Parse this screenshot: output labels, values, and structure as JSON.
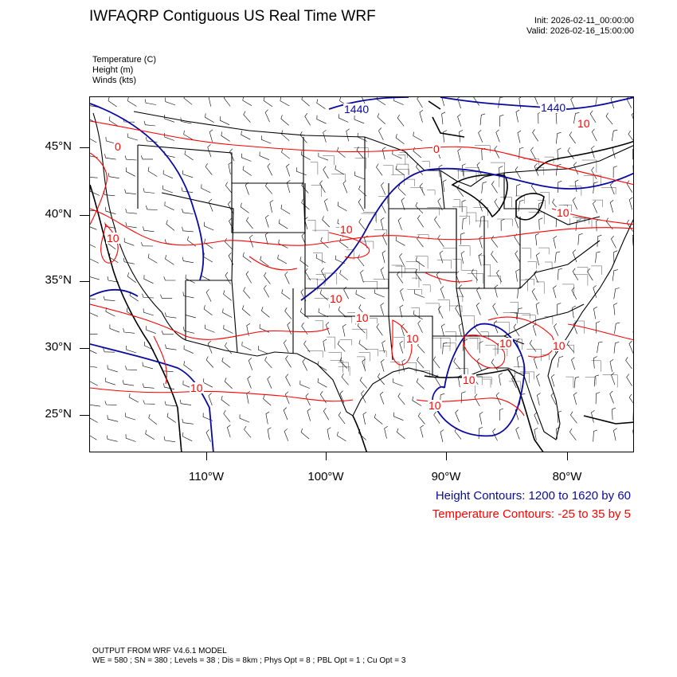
{
  "header": {
    "title": "IWFAQRP Contiguous US Real Time WRF",
    "init": "Init: 2026-02-11_00:00:00",
    "valid": "Valid: 2026-02-16_15:00:00"
  },
  "variables": {
    "temperature": "Temperature   (C)",
    "height": "Height   (m)",
    "winds": "Winds   (kts)"
  },
  "axes": {
    "lat_labels": [
      "45°N",
      "40°N",
      "35°N",
      "30°N",
      "25°N"
    ],
    "lon_labels": [
      "110°W",
      "100°W",
      "90°W",
      "80°W"
    ]
  },
  "legend": {
    "height": "Height Contours: 1200 to 1620 by 60",
    "temperature": "Temperature Contours: -25 to 35 by 5"
  },
  "contour_labels": {
    "height": [
      "1440",
      "1440"
    ],
    "temperature": [
      "0",
      "0",
      "10",
      "10",
      "10",
      "10",
      "10",
      "10",
      "10",
      "10",
      "10",
      "10",
      "10",
      "10"
    ]
  },
  "footer": {
    "line1": "OUTPUT FROM WRF V4.6.1 MODEL",
    "line2": "WE = 580 ; SN = 380 ; Levels = 38 ; Dis = 8km ; Phys Opt = 8 ; PBL Opt = 1 ; Cu Opt = 3"
  },
  "colors": {
    "height_contour": "#0a0aa0",
    "temperature_contour": "#ff0000",
    "boundaries": "#000000"
  }
}
